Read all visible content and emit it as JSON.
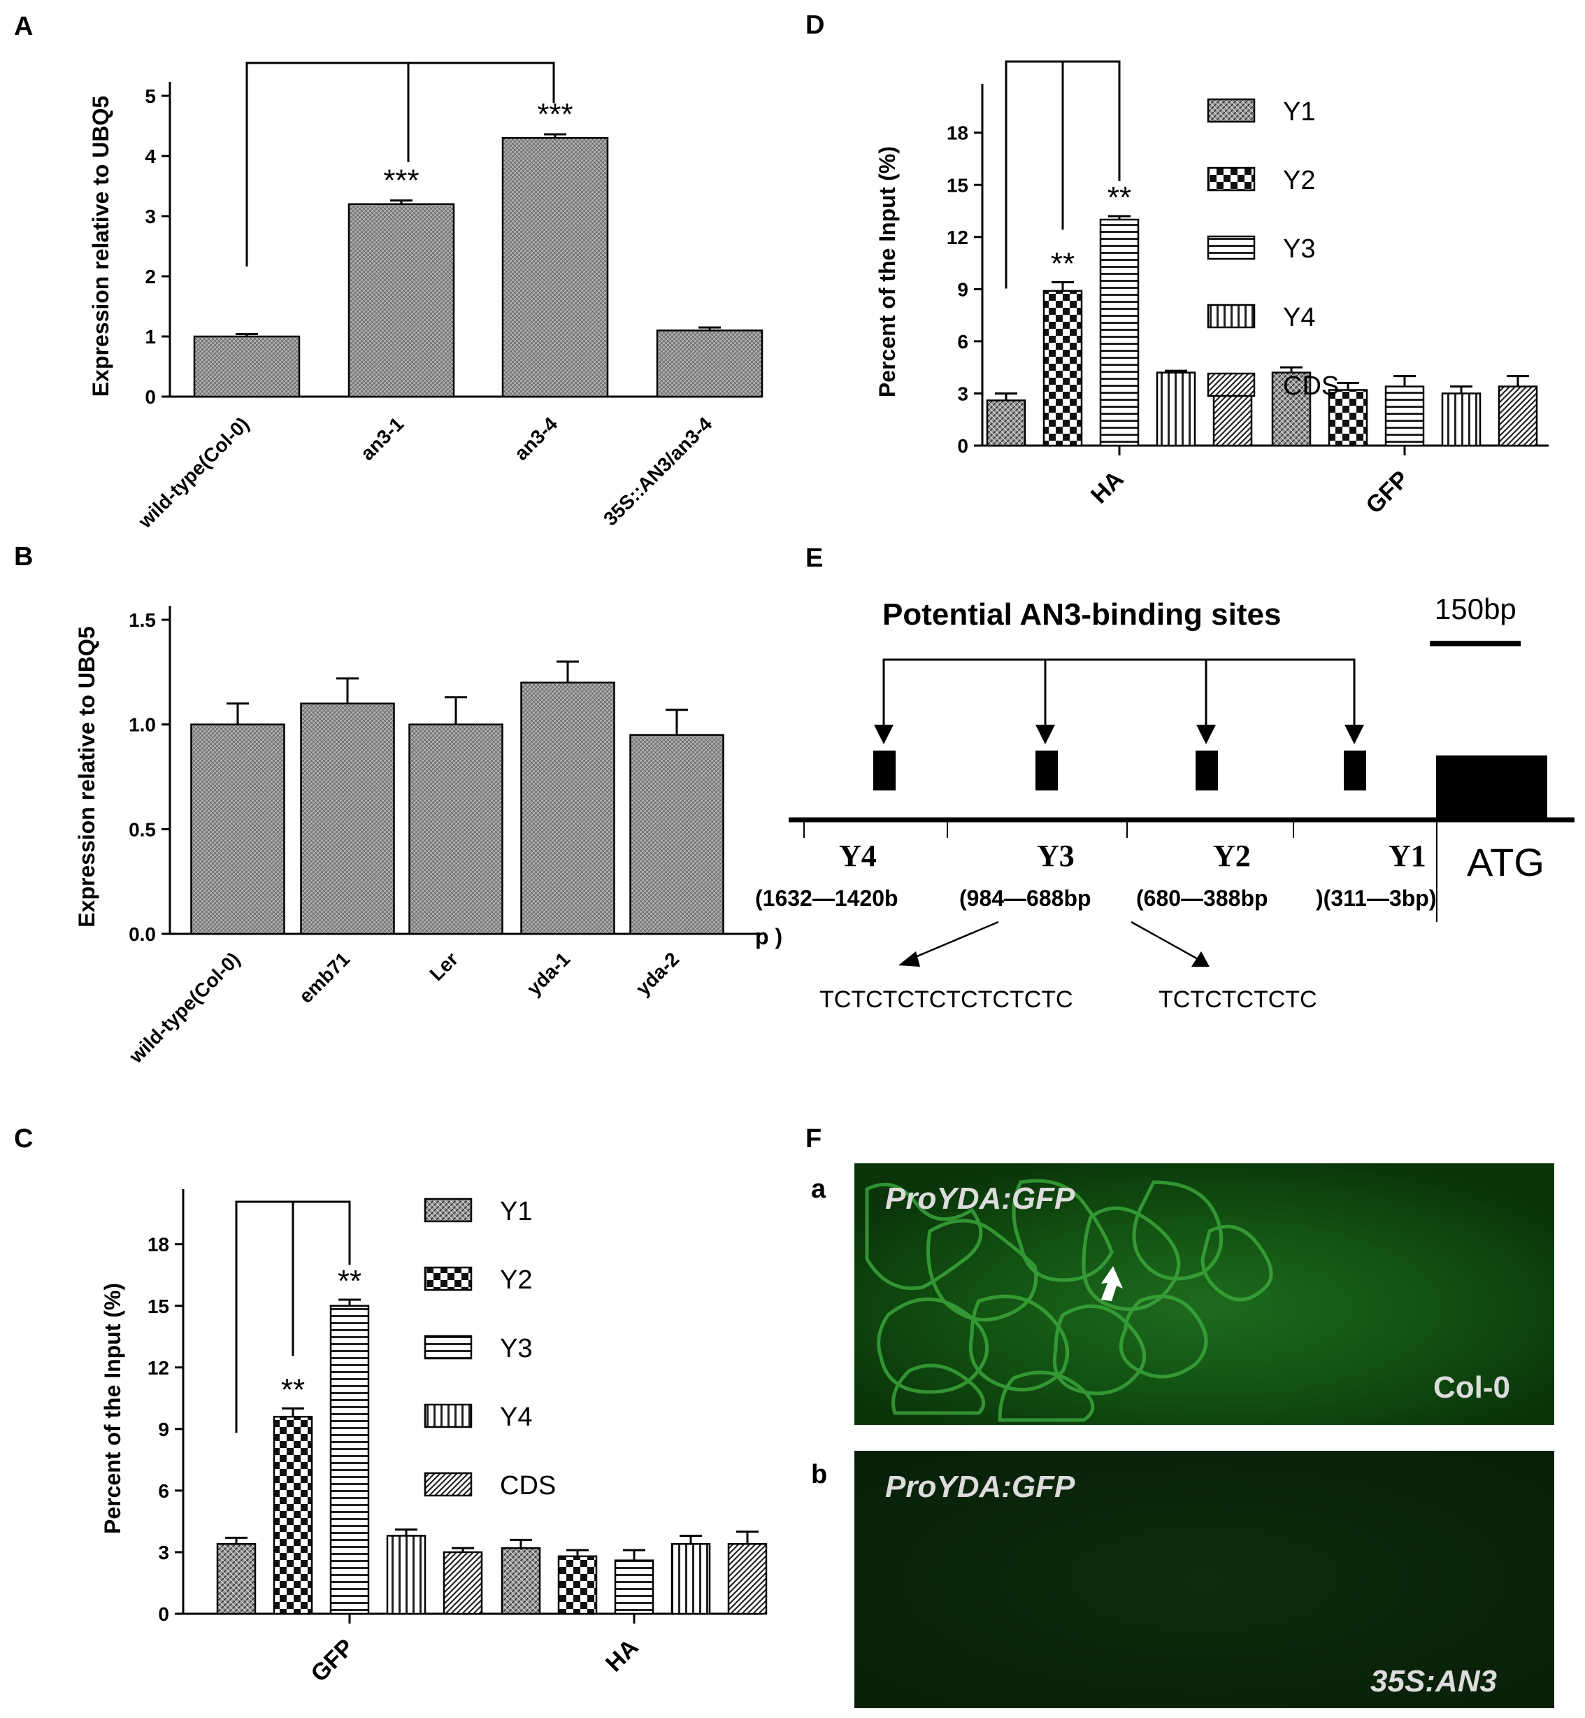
{
  "panels": {
    "A": "A",
    "B": "B",
    "C": "C",
    "D": "D",
    "E": "E",
    "F": "F",
    "Fa": "a",
    "Fb": "b"
  },
  "chart_data": [
    {
      "id": "A",
      "type": "bar",
      "ylabel": "Expression relative to UBQ5",
      "ylim": [
        0,
        5
      ],
      "yticks": [
        0,
        1,
        2,
        3,
        4,
        5
      ],
      "categories": [
        "wild-type(Col-0)",
        "an3-1",
        "an3-4",
        "35S::AN3/an3-4"
      ],
      "values": [
        1.0,
        3.2,
        4.3,
        1.1
      ],
      "errors": [
        0.04,
        0.06,
        0.06,
        0.05
      ],
      "significance": [
        "",
        "***",
        "***",
        ""
      ]
    },
    {
      "id": "B",
      "type": "bar",
      "ylabel": "Expression relative to UBQ5",
      "ylim": [
        0,
        1.5
      ],
      "yticks": [
        "0.0",
        "0.5",
        "1.0",
        "1.5"
      ],
      "categories": [
        "wild-type(Col-0)",
        "emb71",
        "Ler",
        "yda-1",
        "yda-2"
      ],
      "values": [
        1.0,
        1.1,
        1.0,
        1.2,
        0.95
      ],
      "errors": [
        0.1,
        0.12,
        0.13,
        0.1,
        0.12
      ]
    },
    {
      "id": "C",
      "type": "bar",
      "ylabel": "Percent of the Input (%)",
      "ylim": [
        0,
        20
      ],
      "yticks": [
        0,
        3,
        6,
        9,
        12,
        15,
        18
      ],
      "groups": [
        "GFP",
        "HA"
      ],
      "series": [
        {
          "name": "Y1",
          "values": [
            3.4,
            3.2
          ],
          "errors": [
            0.3,
            0.4
          ]
        },
        {
          "name": "Y2",
          "values": [
            9.6,
            2.8
          ],
          "errors": [
            0.4,
            0.3
          ]
        },
        {
          "name": "Y3",
          "values": [
            15.0,
            2.6
          ],
          "errors": [
            0.3,
            0.5
          ]
        },
        {
          "name": "Y4",
          "values": [
            3.8,
            3.4
          ],
          "errors": [
            0.3,
            0.4
          ]
        },
        {
          "name": "CDS",
          "values": [
            3.0,
            3.4
          ],
          "errors": [
            0.2,
            0.6
          ]
        }
      ],
      "significance": [
        [
          "",
          "**",
          "**",
          "",
          ""
        ],
        [
          "",
          "",
          "",
          "",
          ""
        ]
      ]
    },
    {
      "id": "D",
      "type": "bar",
      "ylabel": "Percent of the Input (%)",
      "ylim": [
        0,
        20
      ],
      "yticks": [
        0,
        3,
        6,
        9,
        12,
        15,
        18
      ],
      "groups": [
        "HA",
        "GFP"
      ],
      "series": [
        {
          "name": "Y1",
          "values": [
            2.6,
            4.2
          ],
          "errors": [
            0.4,
            0.3
          ]
        },
        {
          "name": "Y2",
          "values": [
            8.9,
            3.2
          ],
          "errors": [
            0.5,
            0.4
          ]
        },
        {
          "name": "Y3",
          "values": [
            13.0,
            3.4
          ],
          "errors": [
            0.2,
            0.6
          ]
        },
        {
          "name": "Y4",
          "values": [
            4.2,
            3.0
          ],
          "errors": [
            0.1,
            0.4
          ]
        },
        {
          "name": "CDS",
          "values": [
            3.0,
            3.4
          ],
          "errors": [
            0.2,
            0.6
          ]
        }
      ],
      "significance": [
        [
          "",
          "**",
          "**",
          "",
          ""
        ],
        [
          "",
          "",
          "",
          "",
          ""
        ]
      ]
    }
  ],
  "diagram_E": {
    "title": "Potential AN3-binding sites",
    "scale": "150bp",
    "regions": [
      "Y4",
      "Y3",
      "Y2",
      "Y1"
    ],
    "ranges": [
      "(1632—1420b",
      "(984—688bp",
      "(680—388bp",
      ")(311—3bp)"
    ],
    "range_wrap": "p )",
    "atg": "ATG",
    "seq1": "TCTCTCTCTCTCTCTC",
    "seq2": "TCTCTCTCTC"
  },
  "micrographs": {
    "a_label": "ProYDA:GFP",
    "a_caption": "Col-0",
    "b_label": "ProYDA:GFP",
    "b_caption": "35S:AN3"
  }
}
